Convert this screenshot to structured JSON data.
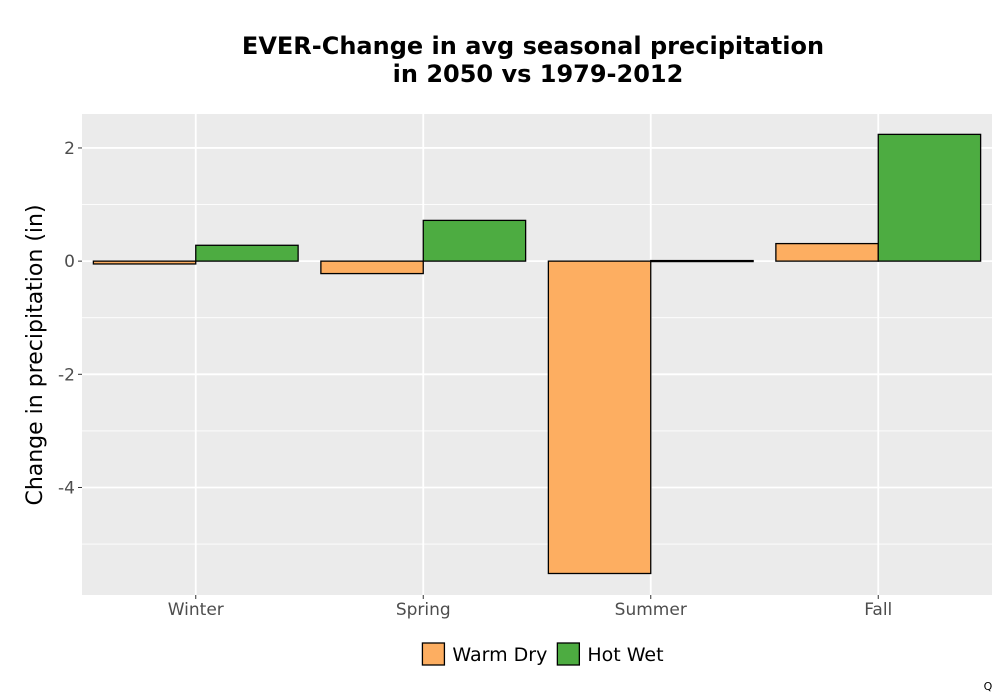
{
  "title_line1": "EVER-Change in avg seasonal precipitation",
  "title_line2": "in 2050 vs 1979-2012",
  "corner_mark": "Q",
  "chart_data": {
    "type": "bar",
    "title": "EVER-Change in avg seasonal precipitation in 2050 vs 1979-2012",
    "xlabel": "",
    "ylabel": "Change in precipitation (in)",
    "categories": [
      "Winter",
      "Spring",
      "Summer",
      "Fall"
    ],
    "series": [
      {
        "name": "Warm Dry",
        "color": "#FDAE61",
        "values": [
          -0.05,
          -0.22,
          -5.52,
          0.31
        ]
      },
      {
        "name": "Hot Wet",
        "color": "#4DAC41",
        "values": [
          0.28,
          0.72,
          0.01,
          2.24
        ]
      }
    ],
    "yticks": [
      -4,
      -2,
      0,
      2
    ],
    "ytick_labels": [
      "-4",
      "-2",
      "0",
      "2"
    ],
    "ylim": [
      -5.9,
      2.6
    ],
    "grid": true,
    "legend_position": "bottom"
  }
}
